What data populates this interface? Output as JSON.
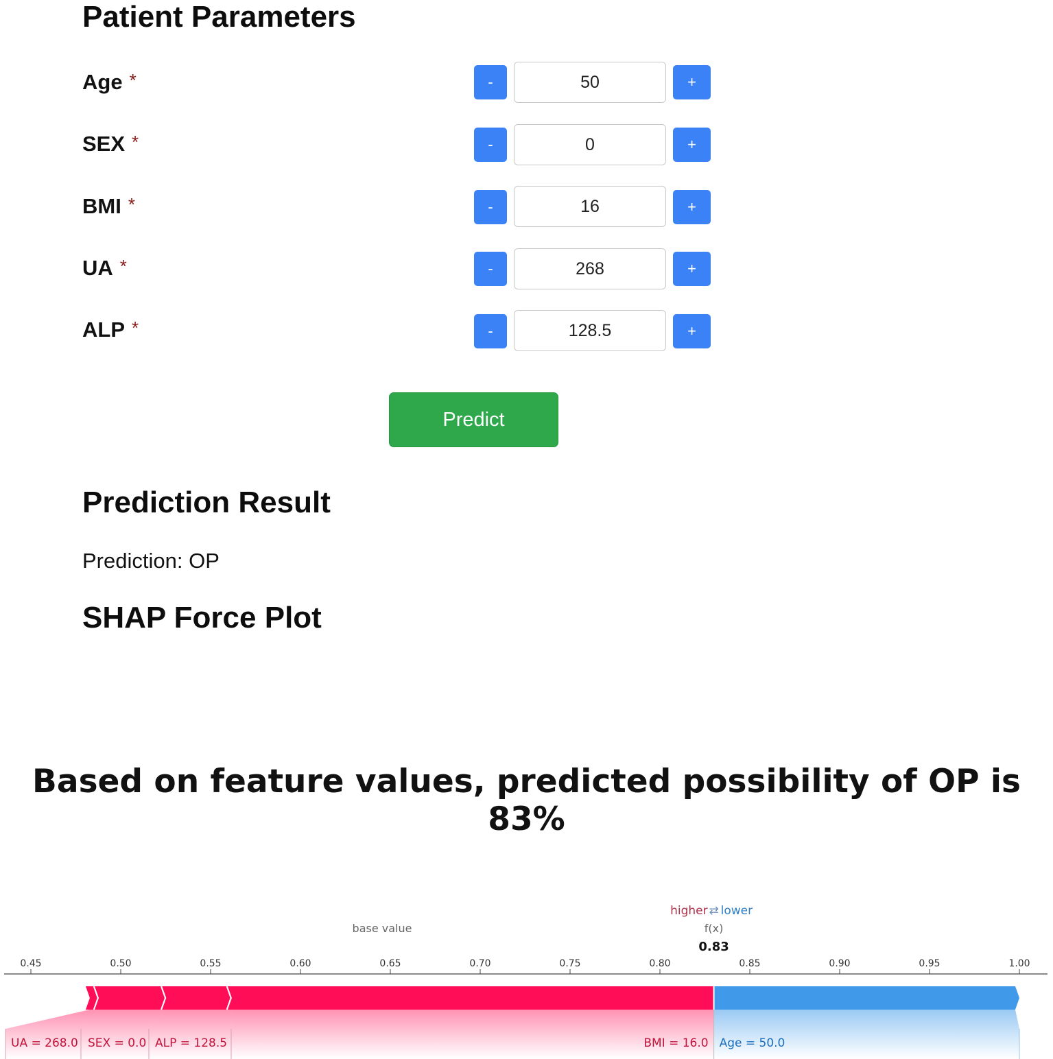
{
  "sections": {
    "params_title": "Patient Parameters",
    "result_title": "Prediction Result",
    "shap_title": "SHAP Force Plot"
  },
  "params": [
    {
      "label": "Age",
      "required": "*",
      "value": "50",
      "minus": "-",
      "plus": "+"
    },
    {
      "label": "SEX",
      "required": "*",
      "value": "0",
      "minus": "-",
      "plus": "+"
    },
    {
      "label": "BMI",
      "required": "*",
      "value": "16",
      "minus": "-",
      "plus": "+"
    },
    {
      "label": "UA",
      "required": "*",
      "value": "268",
      "minus": "-",
      "plus": "+"
    },
    {
      "label": "ALP",
      "required": "*",
      "value": "128.5",
      "minus": "-",
      "plus": "+"
    }
  ],
  "predict_label": "Predict",
  "prediction_text": "Prediction: OP",
  "headline": "Based on feature values, predicted possibility of OP is 83%",
  "colors": {
    "accent_blue": "#3b82f6",
    "predict_green": "#2ea84a",
    "shap_red": "#ff0d57",
    "shap_blue": "#1e88e5"
  },
  "chart_data": {
    "type": "shap-force",
    "base_value_label": "base value",
    "higher_label": "higher",
    "lower_label": "lower",
    "arrow_glyph": "⇄",
    "fx_label": "f(x)",
    "fx_value": 0.83,
    "fx_text": "0.83",
    "xlim": [
      0.45,
      1.0
    ],
    "ticks": [
      "0.45",
      "0.50",
      "0.55",
      "0.60",
      "0.65",
      "0.70",
      "0.75",
      "0.80",
      "0.85",
      "0.90",
      "0.95",
      "1.00"
    ],
    "tick_values": [
      0.45,
      0.5,
      0.55,
      0.6,
      0.65,
      0.7,
      0.75,
      0.8,
      0.85,
      0.9,
      0.95,
      1.0
    ],
    "positive": [
      {
        "label": "UA = 268.0",
        "start": 0.4805,
        "end": 0.4855
      },
      {
        "label": "SEX = 0.0",
        "start": 0.4855,
        "end": 0.523
      },
      {
        "label": "ALP = 128.5",
        "start": 0.523,
        "end": 0.5595
      },
      {
        "label": "BMI = 16.0",
        "start": 0.5595,
        "end": 0.83
      }
    ],
    "negative": [
      {
        "label": "Age = 50.0",
        "start": 0.83,
        "end": 1.0
      }
    ]
  }
}
